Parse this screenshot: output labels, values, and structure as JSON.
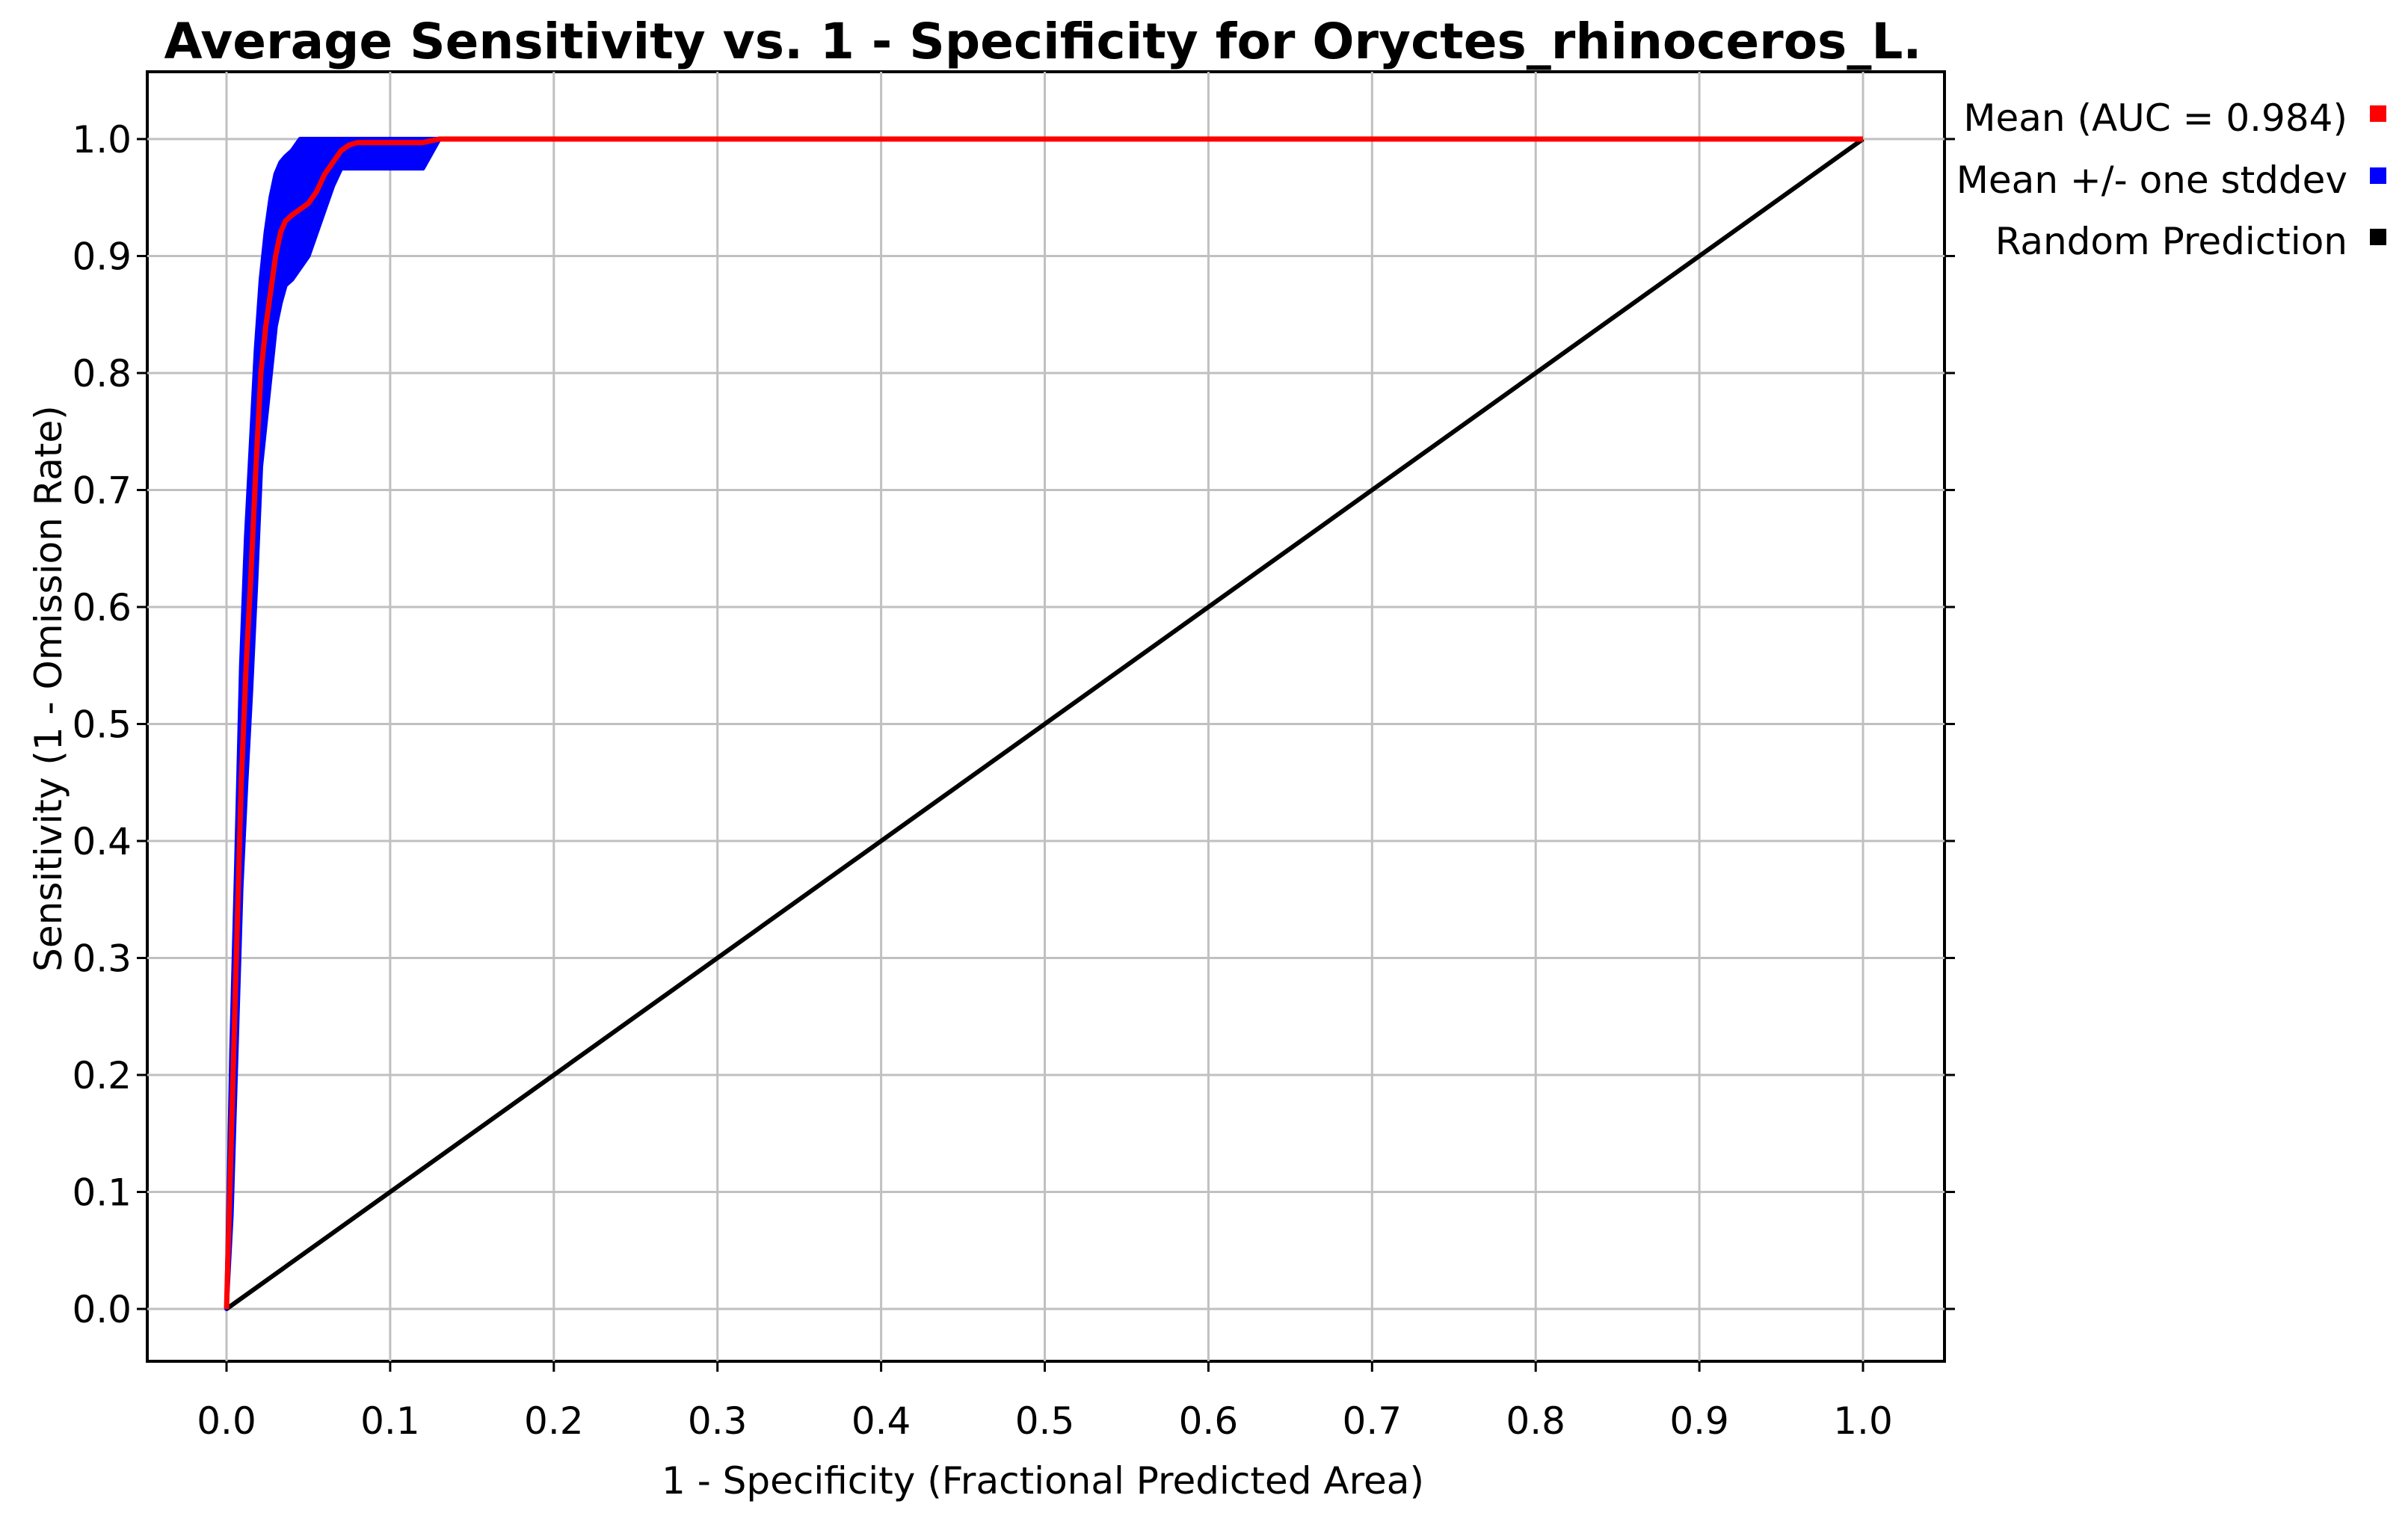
{
  "chart_data": {
    "type": "line",
    "title": "Average Sensitivity vs. 1 - Specificity for Oryctes_rhinoceros_L.",
    "xlabel": "1 - Specificity (Fractional Predicted Area)",
    "ylabel": "Sensitivity (1 - Omission Rate)",
    "xlim": [
      0.0,
      1.0
    ],
    "ylim": [
      0.0,
      1.0
    ],
    "x_ticks": [
      "0.0",
      "0.1",
      "0.2",
      "0.3",
      "0.4",
      "0.5",
      "0.6",
      "0.7",
      "0.8",
      "0.9",
      "1.0"
    ],
    "y_ticks": [
      "0.0",
      "0.1",
      "0.2",
      "0.3",
      "0.4",
      "0.5",
      "0.6",
      "0.7",
      "0.8",
      "0.9",
      "1.0"
    ],
    "grid": true,
    "legend_position": "right",
    "series": [
      {
        "name": "Mean (AUC = 0.984)",
        "color": "#ff0000",
        "x": [
          0.0,
          0.003,
          0.006,
          0.009,
          0.012,
          0.015,
          0.018,
          0.021,
          0.024,
          0.027,
          0.03,
          0.033,
          0.036,
          0.04,
          0.045,
          0.05,
          0.055,
          0.06,
          0.065,
          0.07,
          0.075,
          0.08,
          0.1,
          0.12,
          0.13,
          1.0
        ],
        "y": [
          0.0,
          0.15,
          0.3,
          0.45,
          0.55,
          0.63,
          0.72,
          0.8,
          0.84,
          0.87,
          0.9,
          0.92,
          0.93,
          0.935,
          0.94,
          0.945,
          0.955,
          0.97,
          0.98,
          0.99,
          0.995,
          0.997,
          0.997,
          0.997,
          1.0,
          1.0
        ]
      },
      {
        "name": "Mean +/- one stddev",
        "color": "#0000ff",
        "x": [
          0.0,
          0.003,
          0.006,
          0.009,
          0.012,
          0.015,
          0.018,
          0.021,
          0.024,
          0.027,
          0.03,
          0.033,
          0.036,
          0.04,
          0.045,
          0.05,
          0.055,
          0.06,
          0.065,
          0.07,
          0.075,
          0.08,
          0.1,
          0.12,
          0.13
        ],
        "upper": [
          0.0,
          0.22,
          0.38,
          0.55,
          0.66,
          0.74,
          0.82,
          0.88,
          0.92,
          0.95,
          0.97,
          0.98,
          0.985,
          0.99,
          1.0,
          1.0,
          1.0,
          1.0,
          1.0,
          1.0,
          1.0,
          1.0,
          1.0,
          1.0,
          1.0
        ],
        "lower": [
          0.0,
          0.08,
          0.22,
          0.36,
          0.45,
          0.53,
          0.62,
          0.72,
          0.76,
          0.8,
          0.84,
          0.86,
          0.875,
          0.88,
          0.89,
          0.9,
          0.92,
          0.94,
          0.96,
          0.975,
          0.975,
          0.975,
          0.975,
          0.975,
          1.0
        ]
      },
      {
        "name": "Random Prediction",
        "color": "#000000",
        "x": [
          0.0,
          1.0
        ],
        "y": [
          0.0,
          1.0
        ]
      }
    ]
  },
  "colors": {
    "grid": "#c0c0c0",
    "frame": "#000000",
    "background": "#ffffff"
  }
}
